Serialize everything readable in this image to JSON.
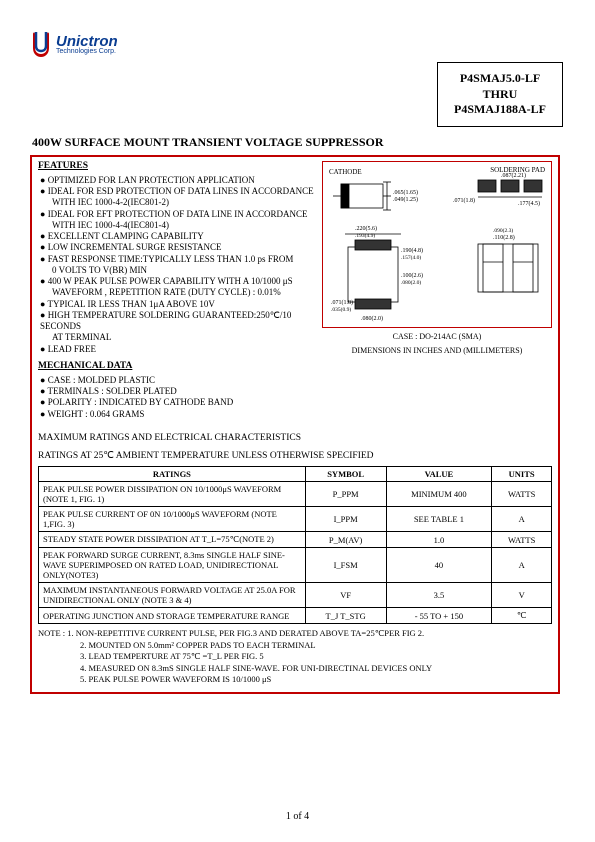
{
  "logo": {
    "name": "Unictron",
    "sub": "Technologies Corp."
  },
  "part_box": {
    "l1": "P4SMAJ5.0-LF",
    "l2": "THRU",
    "l3": "P4SMAJ188A-LF"
  },
  "main_title": "400W SURFACE MOUNT TRANSIENT VOLTAGE SUPPRESSOR",
  "features_head": "FEATURES",
  "features": [
    "OPTIMIZED FOR LAN PROTECTION APPLICATION",
    "IDEAL FOR ESD PROTECTION OF DATA LINES IN ACCORDANCE",
    "WITH IEC 1000-4-2(IEC801-2)",
    "IDEAL FOR EFT PROTECTION OF DATA LINE IN ACCORDANCE",
    "WITH IEC 1000-4-4(IEC801-4)",
    "EXCELLENT CLAMPING CAPABILITY",
    "LOW INCREMENTAL SURGE RESISTANCE",
    "FAST RESPONSE TIME:TYPICALLY LESS THAN 1.0 ps FROM",
    "0 VOLTS TO V(BR) MIN",
    "400 W PEAK PULSE POWER CAPABILITY WITH A 10/1000 μS",
    "WAVEFORM , REPETITION RATE (DUTY CYCLE) : 0.01%",
    "TYPICAL IR LESS THAN 1μA ABOVE 10V",
    "HIGH TEMPERATURE SOLDERING GUARANTEED:250℃/10 SECONDS",
    "AT TERMINAL",
    "LEAD FREE"
  ],
  "feature_indent": [
    false,
    false,
    true,
    false,
    true,
    false,
    false,
    false,
    true,
    false,
    true,
    false,
    false,
    true,
    false
  ],
  "feature_bullet": [
    true,
    true,
    false,
    true,
    false,
    true,
    true,
    true,
    false,
    true,
    false,
    true,
    true,
    false,
    true
  ],
  "mech_head": "MECHANICAL DATA",
  "mech": [
    "CASE : MOLDED PLASTIC",
    "TERMINALS : SOLDER PLATED",
    "POLARITY : INDICATED BY CATHODE BAND",
    "WEIGHT : 0.064 GRAMS"
  ],
  "diagram": {
    "cathode": "CATHODE",
    "solder": "SOLDERING PAD",
    "case_note": "CASE : DO-214AC (SMA)",
    "dim_note": "DIMENSIONS IN INCHES AND (MILLIMETERS)",
    "dims": [
      ".065(1.65)",
      ".049(1.25)",
      ".087(2.21)",
      ".071(1.8)",
      ".177(4.5)",
      ".220(5.6)",
      ".193(4.9)",
      ".190(4.8)",
      ".157(4.0)",
      ".110(2.8)",
      ".090(2.3)",
      ".100(2.6)",
      ".080(2.0)",
      ".071(1.8)",
      ".035(0.9)",
      ".080(2.0)"
    ]
  },
  "ratings_title1": "MAXIMUM RATINGS AND ELECTRICAL CHARACTERISTICS",
  "ratings_title2": "RATINGS AT 25℃ AMBIENT TEMPERATURE UNLESS OTHERWISE SPECIFIED",
  "ratings_cols": [
    "RATINGS",
    "SYMBOL",
    "VALUE",
    "UNITS"
  ],
  "ratings_rows": [
    {
      "r": "PEAK PULSE POWER DISSIPATION ON 10/1000μS WAVEFORM (NOTE 1, FIG. 1)",
      "s": "P_PPM",
      "v": "MINIMUM 400",
      "u": "WATTS"
    },
    {
      "r": "PEAK PULSE CURRENT OF 0N 10/1000μS WAVEFORM (NOTE 1,FIG. 3)",
      "s": "I_PPM",
      "v": "SEE TABLE 1",
      "u": "A"
    },
    {
      "r": "STEADY STATE POWER DISSIPATION AT T_L=75℃(NOTE 2)",
      "s": "P_M(AV)",
      "v": "1.0",
      "u": "WATTS"
    },
    {
      "r": "PEAK FORWARD SURGE CURRENT, 8.3ms SINGLE HALF SINE-WAVE SUPERIMPOSED ON RATED LOAD, UNIDIRECTIONAL ONLY(NOTE3)",
      "s": "I_FSM",
      "v": "40",
      "u": "A"
    },
    {
      "r": "MAXIMUM INSTANTANEOUS FORWARD VOLTAGE AT 25.0A FOR UNIDIRECTIONAL ONLY (NOTE 3 & 4)",
      "s": "VF",
      "v": "3.5",
      "u": "V"
    },
    {
      "r": "OPERATING JUNCTION AND STORAGE TEMPERATURE RANGE",
      "s": "T_J T_STG",
      "v": "- 55 TO + 150",
      "u": "℃"
    }
  ],
  "notes_label": "NOTE :",
  "notes": [
    "1. NON-REPETITIVE CURRENT PULSE, PER FIG.3 AND DERATED ABOVE TA=25℃PER FIG 2.",
    "2. MOUNTED ON 5.0mm² COPPER PADS TO EACH TERMINAL",
    "3. LEAD TEMPERTURE AT 75℃ =T_L PER FIG. 5",
    "4. MEASURED ON 8.3mS SINGLE HALF SINE-WAVE. FOR UNI-DIRECTINAL DEVICES ONLY",
    "5. PEAK PULSE POWER WAVEFORM IS 10/1000 μS"
  ],
  "page": "1 of 4",
  "colors": {
    "frame": "#c00000",
    "logo": "#0a3d91"
  }
}
